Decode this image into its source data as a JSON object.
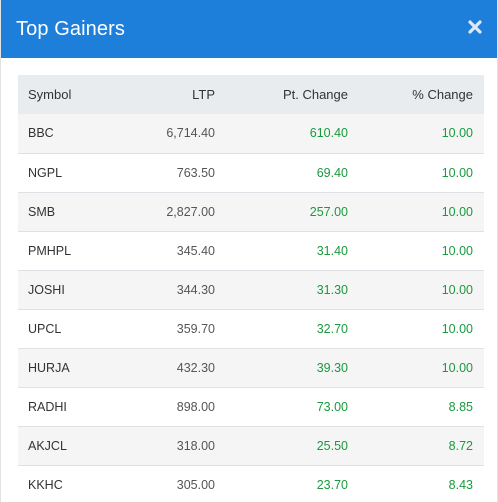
{
  "modal": {
    "title": "Top Gainers",
    "close_icon": "close-icon"
  },
  "table": {
    "columns": [
      "Symbol",
      "LTP",
      "Pt. Change",
      "% Change"
    ],
    "rows": [
      {
        "symbol": "BBC",
        "ltp": "6,714.40",
        "pt_change": "610.40",
        "pct_change": "10.00"
      },
      {
        "symbol": "NGPL",
        "ltp": "763.50",
        "pt_change": "69.40",
        "pct_change": "10.00"
      },
      {
        "symbol": "SMB",
        "ltp": "2,827.00",
        "pt_change": "257.00",
        "pct_change": "10.00"
      },
      {
        "symbol": "PMHPL",
        "ltp": "345.40",
        "pt_change": "31.40",
        "pct_change": "10.00"
      },
      {
        "symbol": "JOSHI",
        "ltp": "344.30",
        "pt_change": "31.30",
        "pct_change": "10.00"
      },
      {
        "symbol": "UPCL",
        "ltp": "359.70",
        "pt_change": "32.70",
        "pct_change": "10.00"
      },
      {
        "symbol": "HURJA",
        "ltp": "432.30",
        "pt_change": "39.30",
        "pct_change": "10.00"
      },
      {
        "symbol": "RADHI",
        "ltp": "898.00",
        "pt_change": "73.00",
        "pct_change": "8.85"
      },
      {
        "symbol": "AKJCL",
        "ltp": "318.00",
        "pt_change": "25.50",
        "pct_change": "8.72"
      },
      {
        "symbol": "KKHC",
        "ltp": "305.00",
        "pt_change": "23.70",
        "pct_change": "8.43"
      }
    ]
  },
  "colors": {
    "header_bg": "#1d7fd9",
    "gain": "#1a9a3e"
  }
}
